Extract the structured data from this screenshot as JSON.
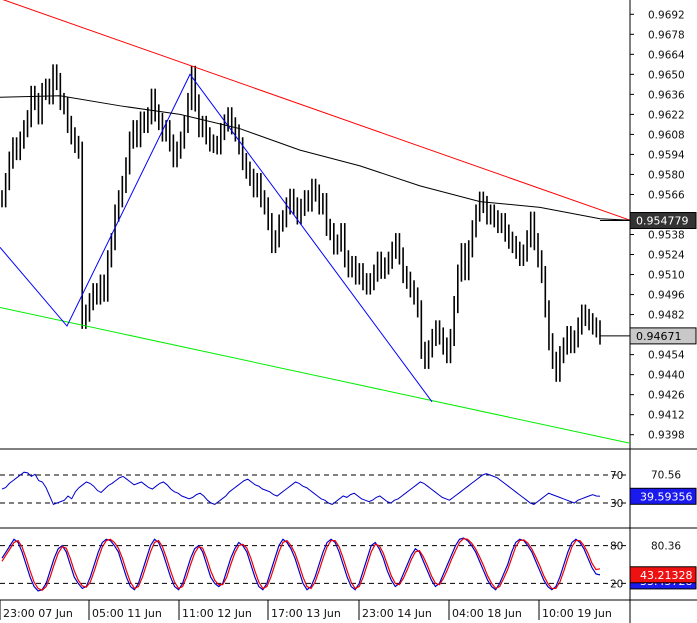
{
  "chart_data": [
    {
      "type": "candlestick",
      "panel": "price",
      "y_ticks": [
        "0.9692",
        "0.9678",
        "0.9664",
        "0.9650",
        "0.9636",
        "0.9622",
        "0.9608",
        "0.9594",
        "0.9580",
        "0.9566",
        "0.9538",
        "0.9524",
        "0.9510",
        "0.9496",
        "0.9482",
        "0.9454",
        "0.9440",
        "0.9426",
        "0.9412",
        "0.9398"
      ],
      "ylim": [
        0.9388,
        0.9702
      ],
      "grid": false,
      "price_tags": [
        {
          "value": 0.954779,
          "label": "0.954779",
          "style": "dark"
        },
        {
          "value": 0.94671,
          "label": "0.94671",
          "style": "light"
        }
      ],
      "close": [
        0.9563,
        0.9575,
        0.959,
        0.96,
        0.9596,
        0.9604,
        0.9612,
        0.9619,
        0.9636,
        0.9631,
        0.9621,
        0.9638,
        0.9641,
        0.9635,
        0.9651,
        0.9645,
        0.9631,
        0.9628,
        0.9615,
        0.9607,
        0.9601,
        0.9597,
        0.9478,
        0.9483,
        0.9491,
        0.9498,
        0.9495,
        0.9504,
        0.9497,
        0.9521,
        0.9533,
        0.9553,
        0.9563,
        0.9573,
        0.9586,
        0.9604,
        0.9612,
        0.9605,
        0.9618,
        0.9615,
        0.9621,
        0.9634,
        0.9623,
        0.9617,
        0.9609,
        0.9612,
        0.9602,
        0.9591,
        0.9597,
        0.9604,
        0.9615,
        0.9631,
        0.965,
        0.963,
        0.9612,
        0.9615,
        0.9607,
        0.9602,
        0.9601,
        0.96,
        0.961,
        0.9616,
        0.9621,
        0.9614,
        0.9609,
        0.96,
        0.9589,
        0.9583,
        0.9578,
        0.957,
        0.9575,
        0.9563,
        0.9558,
        0.9547,
        0.9531,
        0.9535,
        0.9546,
        0.9549,
        0.9558,
        0.9564,
        0.9558,
        0.9551,
        0.9557,
        0.9563,
        0.956,
        0.9571,
        0.9567,
        0.9558,
        0.9561,
        0.9543,
        0.954,
        0.953,
        0.9532,
        0.954,
        0.9521,
        0.9514,
        0.9517,
        0.9509,
        0.9512,
        0.9505,
        0.9502,
        0.9505,
        0.9511,
        0.952,
        0.9513,
        0.9516,
        0.952,
        0.9527,
        0.9533,
        0.9523,
        0.951,
        0.9506,
        0.95,
        0.9495,
        0.9486,
        0.9457,
        0.945,
        0.9458,
        0.9466,
        0.9472,
        0.9467,
        0.946,
        0.9454,
        0.9466,
        0.9489,
        0.9511,
        0.9526,
        0.9512,
        0.9528,
        0.9542,
        0.9553,
        0.9562,
        0.9559,
        0.9551,
        0.9553,
        0.9549,
        0.9545,
        0.9547,
        0.9539,
        0.9534,
        0.9531,
        0.9527,
        0.9522,
        0.9525,
        0.9535,
        0.9548,
        0.9533,
        0.9521,
        0.951,
        0.9486,
        0.9463,
        0.945,
        0.9441,
        0.9454,
        0.946,
        0.9468,
        0.9461,
        0.9465,
        0.9474,
        0.9483,
        0.948,
        0.9477,
        0.9474,
        0.9472,
        0.9467
      ],
      "lines": [
        {
          "color": "#ff0000",
          "points": [
            [
              0,
              0.9703
            ],
            [
              630,
              0.9548
            ]
          ]
        },
        {
          "color": "#00ee00",
          "points": [
            [
              0,
              0.9487
            ],
            [
              630,
              0.9392
            ]
          ]
        },
        {
          "color": "#0000ff",
          "points": [
            [
              0,
              0.9529
            ],
            [
              67,
              0.9474
            ],
            [
              190,
              0.965
            ],
            [
              432,
              0.9421
            ]
          ]
        },
        {
          "color": "#000000",
          "points": [
            [
              0,
              0.9634
            ],
            [
              60,
              0.9635
            ],
            [
              120,
              0.9628
            ],
            [
              180,
              0.9622
            ],
            [
              240,
              0.9612
            ],
            [
              300,
              0.9597
            ],
            [
              360,
              0.9586
            ],
            [
              420,
              0.9572
            ],
            [
              480,
              0.9561
            ],
            [
              540,
              0.9557
            ],
            [
              600,
              0.9549
            ],
            [
              630,
              0.9548
            ]
          ]
        }
      ]
    },
    {
      "type": "line",
      "panel": "rsi",
      "y_ticks": [
        "70",
        "30"
      ],
      "last_values": [
        "70.56",
        "39.59356"
      ],
      "series": [
        {
          "color": "#0000cc",
          "values": [
            50,
            52,
            58,
            62,
            66,
            70,
            74,
            73,
            68,
            71,
            62,
            60,
            52,
            40,
            28,
            30,
            32,
            34,
            40,
            36,
            46,
            52,
            56,
            60,
            58,
            54,
            48,
            45,
            50,
            55,
            58,
            62,
            66,
            68,
            64,
            60,
            56,
            58,
            60,
            56,
            52,
            50,
            54,
            58,
            60,
            56,
            50,
            46,
            44,
            40,
            38,
            36,
            38,
            42,
            44,
            40,
            34,
            30,
            28,
            32,
            36,
            40,
            46,
            50,
            54,
            58,
            62,
            64,
            60,
            56,
            54,
            50,
            48,
            46,
            42,
            40,
            44,
            48,
            52,
            56,
            60,
            58,
            54,
            52,
            48,
            44,
            40,
            36,
            34,
            30,
            28,
            32,
            36,
            40,
            38,
            42,
            44,
            40,
            36,
            34,
            32,
            34,
            38,
            40,
            36,
            32,
            30,
            34,
            36,
            40,
            44,
            48,
            52,
            56,
            60,
            58,
            54,
            50,
            46,
            42,
            38,
            36,
            34,
            38,
            42,
            46,
            50,
            54,
            58,
            62,
            66,
            70,
            72,
            70,
            68,
            66,
            62,
            58,
            54,
            50,
            46,
            42,
            38,
            34,
            30,
            28,
            32,
            36,
            40,
            44,
            42,
            40,
            38,
            36,
            34,
            32,
            30,
            34,
            36,
            38,
            40,
            42,
            40,
            39.6
          ]
        }
      ]
    },
    {
      "type": "line",
      "panel": "stochastic",
      "y_ticks": [
        "80",
        "20"
      ],
      "last_values": [
        "80.36",
        "43.21328",
        "33.45728"
      ],
      "series": [
        {
          "color": "#0000cc",
          "values": [
            60,
            70,
            80,
            90,
            85,
            70,
            50,
            30,
            15,
            8,
            10,
            20,
            40,
            60,
            75,
            80,
            70,
            50,
            30,
            20,
            12,
            15,
            30,
            50,
            70,
            85,
            90,
            88,
            80,
            70,
            50,
            30,
            15,
            10,
            20,
            40,
            60,
            80,
            90,
            85,
            70,
            50,
            30,
            15,
            10,
            20,
            40,
            60,
            75,
            80,
            70,
            50,
            30,
            20,
            15,
            20,
            40,
            60,
            75,
            85,
            80,
            70,
            50,
            30,
            15,
            10,
            20,
            40,
            60,
            80,
            90,
            85,
            75,
            60,
            40,
            20,
            10,
            15,
            30,
            50,
            70,
            85,
            90,
            85,
            70,
            50,
            30,
            15,
            10,
            20,
            40,
            60,
            80,
            85,
            75,
            60,
            40,
            25,
            15,
            20,
            35,
            50,
            65,
            75,
            70,
            55,
            40,
            25,
            15,
            20,
            35,
            50,
            65,
            80,
            90,
            92,
            88,
            80,
            70,
            55,
            40,
            25,
            15,
            10,
            20,
            35,
            50,
            70,
            85,
            90,
            88,
            80,
            70,
            55,
            40,
            25,
            15,
            10,
            15,
            30,
            50,
            70,
            85,
            90,
            85,
            75,
            60,
            45,
            35,
            33.5
          ]
        },
        {
          "color": "#ee0000",
          "values": [
            55,
            65,
            75,
            85,
            88,
            78,
            60,
            40,
            22,
            12,
            9,
            15,
            30,
            50,
            68,
            78,
            76,
            60,
            40,
            25,
            16,
            14,
            22,
            40,
            60,
            78,
            88,
            90,
            85,
            76,
            60,
            40,
            22,
            12,
            15,
            30,
            50,
            70,
            85,
            88,
            78,
            60,
            40,
            22,
            12,
            15,
            30,
            50,
            68,
            78,
            76,
            60,
            40,
            25,
            18,
            18,
            30,
            50,
            68,
            80,
            82,
            76,
            60,
            40,
            22,
            12,
            15,
            30,
            50,
            70,
            85,
            88,
            80,
            68,
            50,
            30,
            15,
            12,
            22,
            40,
            60,
            78,
            88,
            88,
            78,
            60,
            40,
            22,
            12,
            15,
            30,
            50,
            70,
            82,
            80,
            68,
            50,
            32,
            20,
            18,
            28,
            42,
            58,
            70,
            72,
            62,
            48,
            32,
            20,
            18,
            28,
            42,
            58,
            72,
            85,
            91,
            90,
            84,
            75,
            62,
            48,
            32,
            20,
            12,
            15,
            28,
            42,
            60,
            78,
            88,
            89,
            84,
            75,
            62,
            48,
            32,
            20,
            12,
            12,
            22,
            40,
            60,
            78,
            88,
            88,
            80,
            68,
            52,
            42,
            43.2
          ]
        }
      ]
    }
  ],
  "x_axis_labels": [
    "23:00 07 Jun",
    "05:00 11 Jun",
    "11:00 12 Jun",
    "17:00 13 Jun",
    "23:00 14 Jun",
    "04:00 18 Jun",
    "10:00 19 Jun"
  ]
}
